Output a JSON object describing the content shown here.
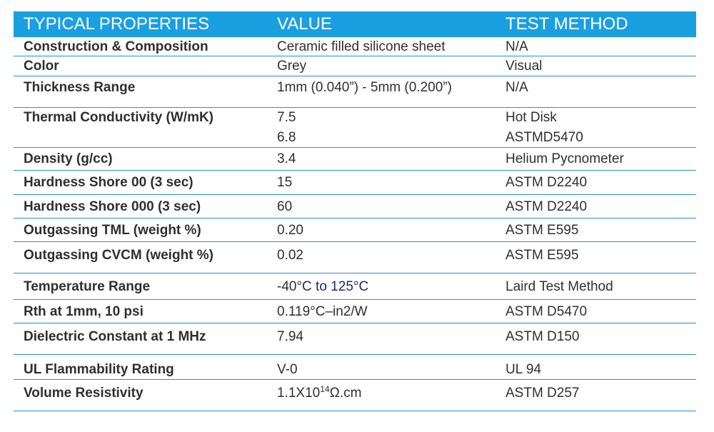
{
  "header": {
    "property": "TYPICAL PROPERTIES",
    "value": "VALUE",
    "method": "TEST METHOD"
  },
  "rows": [
    {
      "property": "Construction & Composition",
      "value": "Ceramic filled silicone sheet",
      "method": "N/A"
    },
    {
      "property": "Color",
      "value": "Grey",
      "method": "Visual"
    },
    {
      "property": "Thickness Range",
      "value": "1mm (0.040”) - 5mm (0.200”)",
      "method": "N/A"
    },
    {
      "property": "Thermal Conductivity (W/mK)",
      "value": [
        "7.5",
        "6.8"
      ],
      "method": [
        "Hot Disk",
        "ASTMD5470"
      ]
    },
    {
      "property": "Density (g/cc)",
      "value": "3.4",
      "method": "Helium Pycnometer"
    },
    {
      "property": "Hardness Shore 00 (3 sec)",
      "value": "15",
      "method": "ASTM D2240"
    },
    {
      "property": "Hardness Shore 000 (3 sec)",
      "value": "60",
      "method": "ASTM D2240"
    },
    {
      "property": "Outgassing TML (weight %)",
      "value": "0.20",
      "method": "ASTM E595"
    },
    {
      "property": "Outgassing CVCM (weight %)",
      "value": "0.02",
      "method": "ASTM E595"
    },
    {
      "property": "Temperature Range",
      "value_start": "-40°C",
      "value_rest": " to 125°C",
      "method": "Laird Test Method"
    },
    {
      "property": "Rth at 1mm, 10 psi",
      "value": "0.119°C–in2/W",
      "method": "ASTM D5470"
    },
    {
      "property": "Dielectric Constant at 1 MHz",
      "value": "7.94",
      "method": "ASTM D150"
    },
    {
      "property": "UL Flammability Rating",
      "value": "V-0",
      "method": "UL 94"
    },
    {
      "property": "Volume Resistivity",
      "value_base": "1.1X10",
      "value_exp": "14",
      "value_unit": "Ω.cm",
      "method": "ASTM D257"
    }
  ],
  "colors": {
    "header_bg": "#1a9fe0",
    "rule": "#2a8fc9",
    "text": "#2f2f2f"
  }
}
